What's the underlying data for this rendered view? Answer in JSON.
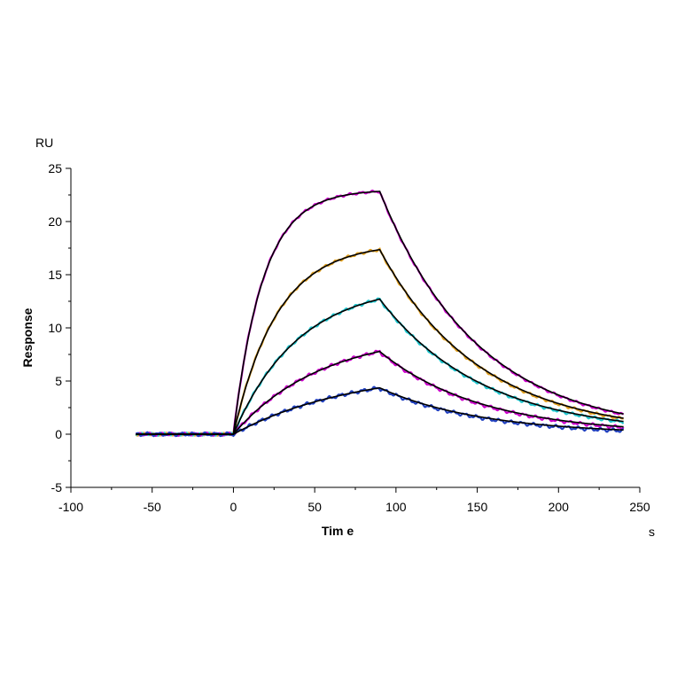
{
  "chart_data": {
    "type": "line",
    "xlabel": "Tim e",
    "ylabel": "Response",
    "x_unit": "s",
    "y_unit": "RU",
    "xlim": [
      -100,
      250
    ],
    "ylim": [
      -5,
      25
    ],
    "x_ticks": [
      -100,
      -50,
      0,
      50,
      100,
      150,
      200,
      250
    ],
    "y_ticks": [
      -5,
      0,
      5,
      10,
      15,
      20,
      25
    ],
    "x_tick_labels": [
      "-100",
      "-50",
      "0",
      "50",
      "100",
      "150",
      "200",
      "250"
    ],
    "y_tick_labels": [
      "-5",
      "0",
      "5",
      "10",
      "15",
      "20",
      "25"
    ],
    "grid": false,
    "legend": "none",
    "x_start": -60,
    "injection_start": 0,
    "injection_end": 90,
    "x_end": 240,
    "fit_color": "#000000",
    "series": [
      {
        "color": "#cc00cc",
        "plateau": 23.0,
        "kon_rate": 0.055,
        "koff_rate": 0.0165,
        "end_value": 1.9
      },
      {
        "color": "#e0a020",
        "plateau": 18.0,
        "kon_rate": 0.037,
        "koff_rate": 0.0165,
        "end_value": 1.5
      },
      {
        "color": "#20c8d0",
        "plateau": 14.2,
        "kon_rate": 0.025,
        "koff_rate": 0.017,
        "end_value": 1.2
      },
      {
        "color": "#cc00cc",
        "plateau": 9.6,
        "kon_rate": 0.0185,
        "koff_rate": 0.0175,
        "end_value": 0.7
      },
      {
        "color": "#2040c0",
        "plateau": 6.2,
        "kon_rate": 0.0135,
        "koff_rate": 0.0155,
        "end_value": 0.4
      }
    ]
  }
}
